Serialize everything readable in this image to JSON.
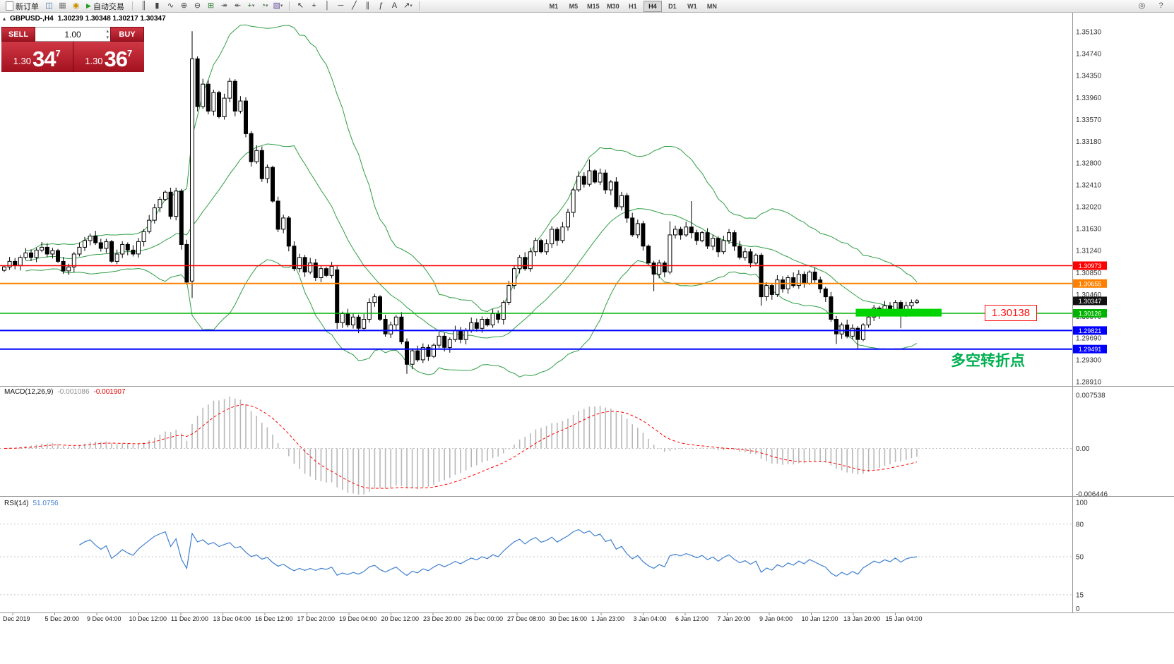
{
  "toolbar": {
    "new_order_label": "新订单",
    "auto_trading_label": "自动交易",
    "icon_groups": [
      [
        {
          "name": "chart-window-icon",
          "glyph": "◫",
          "color": "#3a6ea5"
        },
        {
          "name": "profiles-icon",
          "glyph": "▦",
          "color": "#777777"
        },
        {
          "name": "alerts-icon",
          "glyph": "◉",
          "color": "#c79100"
        }
      ],
      [
        {
          "name": "bar-chart-icon",
          "glyph": "║",
          "color": "#444444"
        },
        {
          "name": "candlestick-icon",
          "glyph": "▮",
          "color": "#444444"
        },
        {
          "name": "line-chart-icon",
          "glyph": "∿",
          "color": "#444444"
        },
        {
          "name": "zoom-in-icon",
          "glyph": "⊕",
          "color": "#444444"
        },
        {
          "name": "zoom-out-icon",
          "glyph": "⊖",
          "color": "#444444"
        },
        {
          "name": "tile-windows-icon",
          "glyph": "⊞",
          "color": "#2e7d32"
        },
        {
          "name": "auto-scroll-icon",
          "glyph": "↠",
          "color": "#555555"
        },
        {
          "name": "chart-shift-icon",
          "glyph": "↞",
          "color": "#555555"
        },
        {
          "name": "indicators-icon",
          "glyph": "+",
          "color": "#2e7d32",
          "caret": true
        },
        {
          "name": "periods-icon",
          "glyph": "◔",
          "color": "#2e7d32",
          "caret": true
        },
        {
          "name": "templates-icon",
          "glyph": "▨",
          "color": "#6a4fa0",
          "caret": true
        }
      ],
      [
        {
          "name": "cursor-icon",
          "glyph": "↖",
          "color": "#333333"
        },
        {
          "name": "crosshair-icon",
          "glyph": "+",
          "color": "#333333"
        },
        {
          "name": "vertical-line-icon",
          "glyph": "│",
          "color": "#333333"
        },
        {
          "name": "horizontal-line-icon",
          "glyph": "─",
          "color": "#333333"
        },
        {
          "name": "trendline-icon",
          "glyph": "╱",
          "color": "#333333"
        },
        {
          "name": "channel-icon",
          "glyph": "∥",
          "color": "#333333"
        },
        {
          "name": "fibonacci-icon",
          "glyph": "ƒ",
          "color": "#333333"
        },
        {
          "name": "text-tool-icon",
          "glyph": "A",
          "color": "#333333"
        },
        {
          "name": "arrows-tool-icon",
          "glyph": "↗",
          "color": "#333333",
          "caret": true
        }
      ]
    ],
    "timeframes": [
      "M1",
      "M5",
      "M15",
      "M30",
      "H1",
      "H4",
      "D1",
      "W1",
      "MN"
    ],
    "active_timeframe": "H4",
    "right_icons": [
      {
        "name": "search-icon",
        "glyph": "◎",
        "color": "#555555"
      },
      {
        "name": "help-icon",
        "glyph": "?",
        "color": "#555555"
      }
    ]
  },
  "trade_panel": {
    "sell_label": "SELL",
    "buy_label": "BUY",
    "volume": "1.00",
    "sell_price": {
      "small": "1.30",
      "big": "34",
      "sup": "7"
    },
    "buy_price": {
      "small": "1.30",
      "big": "36",
      "sup": "7"
    }
  },
  "chart": {
    "symbol": "GBPUSD-,H4",
    "ohlc": "1.30239 1.30348 1.30217 1.30347"
  },
  "chart_data": {
    "type": "candlestick",
    "symbol": "GBPUSD-",
    "timeframe": "H4",
    "ohlc_display": {
      "open": "1.30239",
      "high": "1.30348",
      "low": "1.30217",
      "close": "1.30347"
    },
    "price_axis_ticks": [
      "1.35130",
      "1.34740",
      "1.34350",
      "1.33960",
      "1.33570",
      "1.33180",
      "1.32800",
      "1.32410",
      "1.32020",
      "1.31630",
      "1.31240",
      "1.30850",
      "1.30460",
      "1.30070",
      "1.29690",
      "1.29300",
      "1.28910"
    ],
    "time_labels": [
      "Dec 2019",
      "5 Dec 20:00",
      "9 Dec 04:00",
      "10 Dec 12:00",
      "11 Dec 20:00",
      "13 Dec 04:00",
      "16 Dec 12:00",
      "17 Dec 20:00",
      "19 Dec 04:00",
      "20 Dec 12:00",
      "23 Dec 20:00",
      "26 Dec 00:00",
      "27 Dec 08:00",
      "30 Dec 16:00",
      "1 Jan 23:00",
      "3 Jan 04:00",
      "6 Jan 12:00",
      "7 Jan 20:00",
      "9 Jan 04:00",
      "10 Jan 12:00",
      "13 Jan 20:00",
      "15 Jan 04:00"
    ],
    "candles": {
      "closes": [
        1.3095,
        1.3105,
        1.3098,
        1.3112,
        1.312,
        1.3112,
        1.3125,
        1.313,
        1.3118,
        1.3124,
        1.3105,
        1.3088,
        1.3095,
        1.3118,
        1.313,
        1.3142,
        1.315,
        1.3138,
        1.3128,
        1.314,
        1.3105,
        1.3118,
        1.3135,
        1.3125,
        1.3118,
        1.314,
        1.3158,
        1.3178,
        1.32,
        1.3215,
        1.3228,
        1.3185,
        1.323,
        1.3135,
        1.3068,
        1.3465,
        1.338,
        1.342,
        1.3372,
        1.3405,
        1.3362,
        1.3395,
        1.3425,
        1.3372,
        1.339,
        1.3332,
        1.3282,
        1.3302,
        1.3252,
        1.3272,
        1.3212,
        1.3162,
        1.3182,
        1.3132,
        1.3092,
        1.3112,
        1.3086,
        1.3102,
        1.3076,
        1.3092,
        1.308,
        1.3096,
        1.2996,
        1.3012,
        1.2992,
        1.3006,
        1.2986,
        1.3002,
        1.3032,
        1.3042,
        1.3002,
        1.2976,
        1.2992,
        1.3006,
        1.2962,
        1.2922,
        1.2946,
        1.293,
        1.2952,
        1.2936,
        1.2956,
        1.2972,
        1.2952,
        1.2966,
        1.2982,
        1.2966,
        1.2982,
        1.2996,
        1.2986,
        1.3002,
        1.2992,
        1.3012,
        1.3002,
        1.3032,
        1.3062,
        1.3092,
        1.3112,
        1.3092,
        1.3122,
        1.3142,
        1.3122,
        1.3136,
        1.3162,
        1.3142,
        1.3166,
        1.3192,
        1.3232,
        1.3256,
        1.3242,
        1.3266,
        1.3246,
        1.3262,
        1.3232,
        1.3246,
        1.3202,
        1.3222,
        1.3182,
        1.3152,
        1.3172,
        1.3132,
        1.3102,
        1.3082,
        1.3102,
        1.3086,
        1.3152,
        1.3162,
        1.3152,
        1.3166,
        1.3156,
        1.3142,
        1.3156,
        1.3132,
        1.3146,
        1.3122,
        1.3142,
        1.3156,
        1.3132,
        1.3112,
        1.3122,
        1.3102,
        1.3116,
        1.3042,
        1.3062,
        1.3046,
        1.3072,
        1.3056,
        1.3076,
        1.3062,
        1.3082,
        1.3066,
        1.3086,
        1.3072,
        1.3056,
        1.3042,
        1.3002,
        1.2976,
        1.2992,
        1.2972,
        1.2986,
        1.2966,
        1.2992,
        1.3006,
        1.3022,
        1.3012,
        1.3026,
        1.3016,
        1.3032,
        1.3012,
        1.3026,
        1.3032,
        1.30347
      ],
      "special": {
        "35": [
          1.307,
          1.3514,
          1.304,
          1.3465
        ],
        "62": [
          1.309,
          1.3098,
          1.2985,
          1.2996
        ],
        "75": [
          1.2962,
          1.2968,
          1.2905,
          1.2922
        ],
        "109": [
          1.3242,
          1.3286,
          1.3238,
          1.3266
        ],
        "121": [
          1.3102,
          1.3106,
          1.3052,
          1.3082
        ],
        "124": [
          1.3086,
          1.3176,
          1.3082,
          1.3152
        ],
        "128": [
          1.3166,
          1.3212,
          1.3146,
          1.3156
        ],
        "141": [
          1.3116,
          1.312,
          1.3026,
          1.3042
        ],
        "155": [
          1.3002,
          1.3008,
          1.2958,
          1.2976
        ],
        "159": [
          1.2986,
          1.299,
          1.295,
          1.2966
        ],
        "167": [
          1.3032,
          1.3036,
          1.2986,
          1.3012
        ]
      },
      "up_fill": "#ffffff",
      "down_fill": "#000000",
      "outline": "#000000"
    },
    "bollinger": {
      "period": 20,
      "deviation": 2,
      "color": "#2f9e44"
    },
    "hlines": [
      {
        "price": 1.30973,
        "label": "1.30973",
        "color": "#ff0000",
        "width": 1.5
      },
      {
        "price": 1.30655,
        "label": "1.30655",
        "color": "#ff8000",
        "width": 2
      },
      {
        "price": 1.30126,
        "label": "1.30126",
        "color": "#00b300",
        "width": 1.5
      },
      {
        "price": 1.29821,
        "label": "1.29821",
        "color": "#0000ff",
        "width": 2
      },
      {
        "price": 1.29491,
        "label": "1.29491",
        "color": "#0000ff",
        "width": 2
      }
    ],
    "current_price": {
      "label": "1.30347",
      "price": 1.30347,
      "color": "#111111"
    },
    "highlight_band": {
      "from_index": 159,
      "to_index": 175,
      "center_price": 1.30138,
      "thickness": 11,
      "color": "#00d400"
    },
    "annotations": {
      "price_label": "1.30138",
      "price_label_color": "#ff1010",
      "cn_note": "多空转折点",
      "cn_note_color": "#00b050"
    },
    "macd": {
      "label": "MACD(12,26,9)",
      "value_main": "-0.001086",
      "value_signal": "-0.001907",
      "axis": [
        "0.007538",
        "0.00",
        "-0.006446"
      ],
      "axis_values": [
        0.007538,
        0.0,
        -0.006446
      ],
      "params": [
        12,
        26,
        9
      ],
      "histogram_color": "#b8b8b8",
      "signal_color": "#ff0000"
    },
    "rsi": {
      "label": "RSI(14)",
      "value": "51.0756",
      "period": 14,
      "axis": [
        "100",
        "80",
        "50",
        "15",
        "0"
      ],
      "levels": [
        80,
        50,
        15
      ],
      "color": "#3f7fce"
    }
  }
}
